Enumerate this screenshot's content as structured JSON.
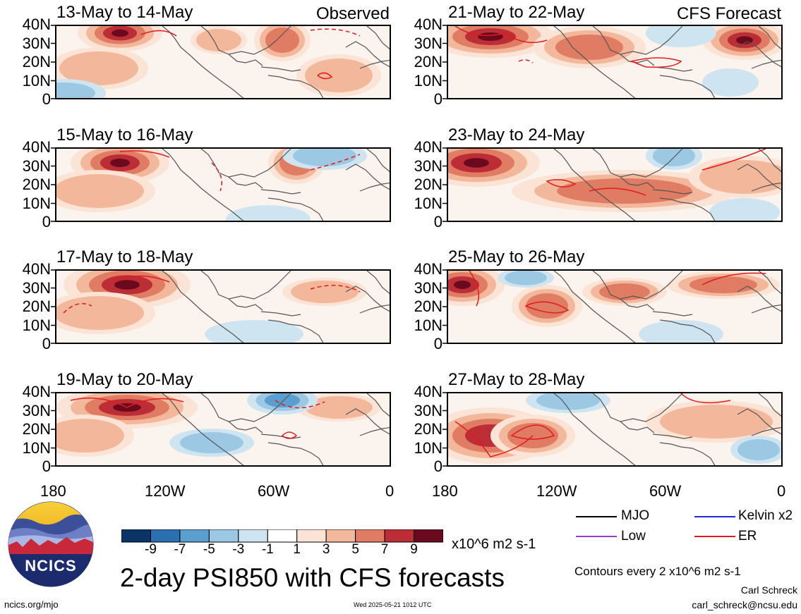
{
  "colors": {
    "levels": [
      "#0a3366",
      "#2a6fb0",
      "#5a9fd0",
      "#9dc8e4",
      "#cfe4f1",
      "#ffffff",
      "#fbe3d6",
      "#f3b79c",
      "#e07c63",
      "#bd2d35",
      "#6b0a1f"
    ],
    "mjo": "#000000",
    "kelvin": "#1f2bd6",
    "low": "#9a3bd6",
    "er": "#e31a1c"
  },
  "panels": [
    {
      "date": "13-May to 14-May",
      "source": "Observed"
    },
    {
      "date": "21-May to 22-May",
      "source": "CFS Forecast"
    },
    {
      "date": "15-May to 16-May",
      "source": ""
    },
    {
      "date": "23-May to 24-May",
      "source": ""
    },
    {
      "date": "17-May to 18-May",
      "source": ""
    },
    {
      "date": "25-May to 26-May",
      "source": ""
    },
    {
      "date": "19-May to 20-May",
      "source": ""
    },
    {
      "date": "27-May to 28-May",
      "source": ""
    }
  ],
  "lat_ticks": [
    "40N",
    "30N",
    "20N",
    "10N",
    "0"
  ],
  "lon_ticks": [
    "180",
    "120W",
    "60W",
    "0"
  ],
  "colorbar": {
    "ticks": [
      "-9",
      "-7",
      "-5",
      "-3",
      "-1",
      "1",
      "3",
      "5",
      "7",
      "9"
    ],
    "units": "x10^6 m2 s-1"
  },
  "legend": {
    "mjo": "MJO",
    "kelvin": "Kelvin x2",
    "low": "Low",
    "er": "ER",
    "contours": "Contours every 2 x10^6 m2 s-1"
  },
  "footer": {
    "title": "2-day PSI850 with CFS forecasts",
    "site": "ncics.org/mjo",
    "timestamp": "Wed 2025-05-21 1012 UTC",
    "author": "Carl Schreck",
    "email": "carl_schreck@ncsu.edu",
    "logo_text": "NCICS"
  }
}
